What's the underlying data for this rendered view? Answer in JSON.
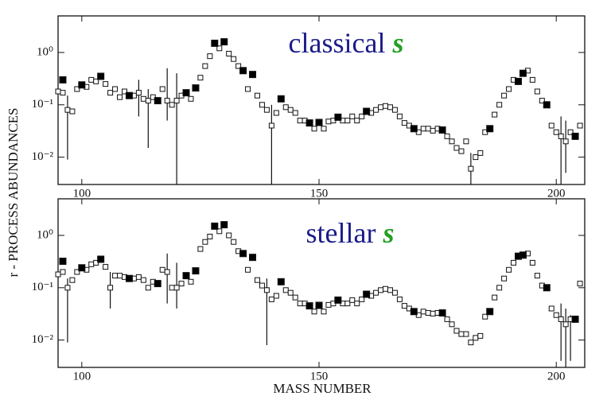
{
  "xlabel": "MASS NUMBER",
  "ylabel": "r - PROCESS ABUNDANCES",
  "chart_data": [
    {
      "type": "scatter",
      "title": {
        "text": "classical",
        "symbol": "s"
      },
      "log_y": true,
      "xlim": [
        95,
        206
      ],
      "xticks": [
        100,
        150,
        200
      ],
      "ylim": [
        0.003,
        5
      ],
      "yticks": [
        {
          "value": 1,
          "label": "10⁰"
        },
        {
          "value": 0.1,
          "label": "10⁻¹"
        },
        {
          "value": 0.01,
          "label": "10⁻²"
        }
      ],
      "series": [
        {
          "color": "#ffffff",
          "x": [
            95,
            96,
            97,
            98,
            99,
            101,
            102,
            103,
            105,
            106,
            107,
            108,
            109,
            111,
            112,
            113,
            114,
            115,
            117,
            118,
            119,
            120,
            121,
            123,
            125,
            126,
            127,
            129,
            131,
            132,
            133,
            135,
            137,
            138,
            139,
            140,
            141,
            143,
            144,
            145,
            146,
            147,
            149,
            151,
            152,
            153,
            155,
            156,
            157,
            158,
            159,
            161,
            162,
            163,
            164,
            165,
            166,
            167,
            168,
            169,
            171,
            172,
            173,
            174,
            175,
            177,
            178,
            179,
            180,
            181,
            182,
            183,
            184,
            185,
            187,
            188,
            189,
            190,
            191,
            194,
            195,
            196,
            197,
            199,
            200,
            201,
            202,
            203,
            205
          ],
          "values": [
            0.18,
            0.17,
            0.08,
            0.075,
            0.2,
            0.22,
            0.3,
            0.28,
            0.25,
            0.17,
            0.2,
            0.14,
            0.18,
            0.15,
            0.17,
            0.13,
            0.12,
            0.14,
            0.2,
            0.12,
            0.1,
            0.12,
            0.15,
            0.13,
            0.33,
            0.55,
            0.85,
            1.2,
            0.95,
            0.75,
            0.55,
            0.2,
            0.15,
            0.1,
            0.08,
            0.04,
            0.07,
            0.09,
            0.08,
            0.07,
            0.05,
            0.05,
            0.035,
            0.035,
            0.048,
            0.05,
            0.05,
            0.05,
            0.06,
            0.05,
            0.06,
            0.07,
            0.08,
            0.09,
            0.095,
            0.09,
            0.08,
            0.06,
            0.045,
            0.04,
            0.03,
            0.035,
            0.035,
            0.032,
            0.035,
            0.025,
            0.02,
            0.015,
            0.013,
            0.02,
            0.006,
            0.01,
            0.012,
            0.03,
            0.065,
            0.1,
            0.15,
            0.2,
            0.3,
            0.45,
            0.3,
            0.18,
            0.12,
            0.04,
            0.03,
            0.025,
            0.02,
            0.03,
            0.04
          ]
        },
        {
          "color": "#000000",
          "x": [
            96,
            100,
            104,
            110,
            116,
            122,
            124,
            128,
            130,
            134,
            136,
            142,
            148,
            150,
            154,
            160,
            170,
            176,
            186,
            192,
            193,
            198,
            204
          ],
          "values": [
            0.3,
            0.24,
            0.35,
            0.15,
            0.12,
            0.17,
            0.21,
            1.5,
            1.6,
            0.45,
            0.38,
            0.13,
            0.045,
            0.046,
            0.058,
            0.075,
            0.035,
            0.033,
            0.035,
            0.28,
            0.4,
            0.1,
            0.025
          ]
        }
      ],
      "error_bars": {
        "x": [
          97,
          112,
          114,
          118,
          120,
          140,
          182,
          201,
          202
        ],
        "low": [
          0.009,
          0.06,
          0.015,
          0.05,
          0.003,
          0.003,
          0.003,
          0.003,
          0.005
        ],
        "high": [
          0.15,
          0.3,
          0.2,
          0.5,
          0.4,
          0.1,
          0.012,
          0.06,
          0.05
        ]
      }
    },
    {
      "type": "scatter",
      "title": {
        "text": "stellar",
        "symbol": "s"
      },
      "log_y": true,
      "xlim": [
        95,
        206
      ],
      "xticks": [
        100,
        150,
        200
      ],
      "ylim": [
        0.003,
        5
      ],
      "yticks": [
        {
          "value": 1,
          "label": "10⁰"
        },
        {
          "value": 0.1,
          "label": "10⁻¹"
        },
        {
          "value": 0.01,
          "label": "10⁻²"
        }
      ],
      "series": [
        {
          "color": "#ffffff",
          "x": [
            95,
            96,
            97,
            98,
            99,
            101,
            102,
            103,
            105,
            106,
            107,
            108,
            109,
            111,
            112,
            113,
            114,
            115,
            117,
            118,
            119,
            120,
            121,
            123,
            125,
            126,
            127,
            129,
            131,
            132,
            133,
            135,
            137,
            138,
            139,
            140,
            141,
            143,
            144,
            145,
            146,
            147,
            149,
            151,
            152,
            153,
            155,
            156,
            157,
            158,
            159,
            161,
            162,
            163,
            164,
            165,
            166,
            167,
            168,
            169,
            171,
            172,
            173,
            174,
            175,
            177,
            178,
            179,
            180,
            181,
            182,
            183,
            184,
            185,
            187,
            188,
            189,
            190,
            191,
            194,
            195,
            196,
            197,
            199,
            200,
            201,
            202,
            203,
            205
          ],
          "values": [
            0.18,
            0.2,
            0.1,
            0.14,
            0.2,
            0.22,
            0.28,
            0.3,
            0.25,
            0.1,
            0.17,
            0.17,
            0.16,
            0.15,
            0.16,
            0.14,
            0.1,
            0.13,
            0.22,
            0.2,
            0.1,
            0.1,
            0.12,
            0.13,
            0.55,
            0.75,
            0.95,
            1.2,
            1.0,
            0.75,
            0.5,
            0.22,
            0.14,
            0.11,
            0.09,
            0.06,
            0.07,
            0.09,
            0.08,
            0.065,
            0.05,
            0.05,
            0.035,
            0.035,
            0.047,
            0.05,
            0.05,
            0.05,
            0.058,
            0.05,
            0.06,
            0.07,
            0.08,
            0.09,
            0.095,
            0.09,
            0.08,
            0.06,
            0.045,
            0.04,
            0.03,
            0.035,
            0.033,
            0.032,
            0.033,
            0.025,
            0.02,
            0.015,
            0.013,
            0.013,
            0.009,
            0.011,
            0.012,
            0.028,
            0.065,
            0.1,
            0.15,
            0.22,
            0.3,
            0.45,
            0.3,
            0.17,
            0.11,
            0.04,
            0.03,
            0.025,
            0.02,
            0.025,
            0.12
          ]
        },
        {
          "color": "#000000",
          "x": [
            96,
            100,
            104,
            110,
            116,
            122,
            124,
            128,
            130,
            134,
            136,
            142,
            148,
            150,
            154,
            160,
            170,
            176,
            186,
            192,
            193,
            198,
            204
          ],
          "values": [
            0.32,
            0.24,
            0.35,
            0.15,
            0.12,
            0.17,
            0.21,
            1.5,
            1.6,
            0.45,
            0.38,
            0.13,
            0.045,
            0.046,
            0.058,
            0.075,
            0.035,
            0.033,
            0.035,
            0.4,
            0.42,
            0.1,
            0.025
          ]
        }
      ],
      "error_bars": {
        "x": [
          97,
          106,
          118,
          120,
          139,
          201,
          202,
          203
        ],
        "low": [
          0.009,
          0.04,
          0.05,
          0.04,
          0.008,
          0.004,
          0.003,
          0.004
        ],
        "high": [
          0.15,
          0.2,
          0.45,
          0.3,
          0.15,
          0.05,
          0.04,
          0.03
        ]
      }
    }
  ]
}
